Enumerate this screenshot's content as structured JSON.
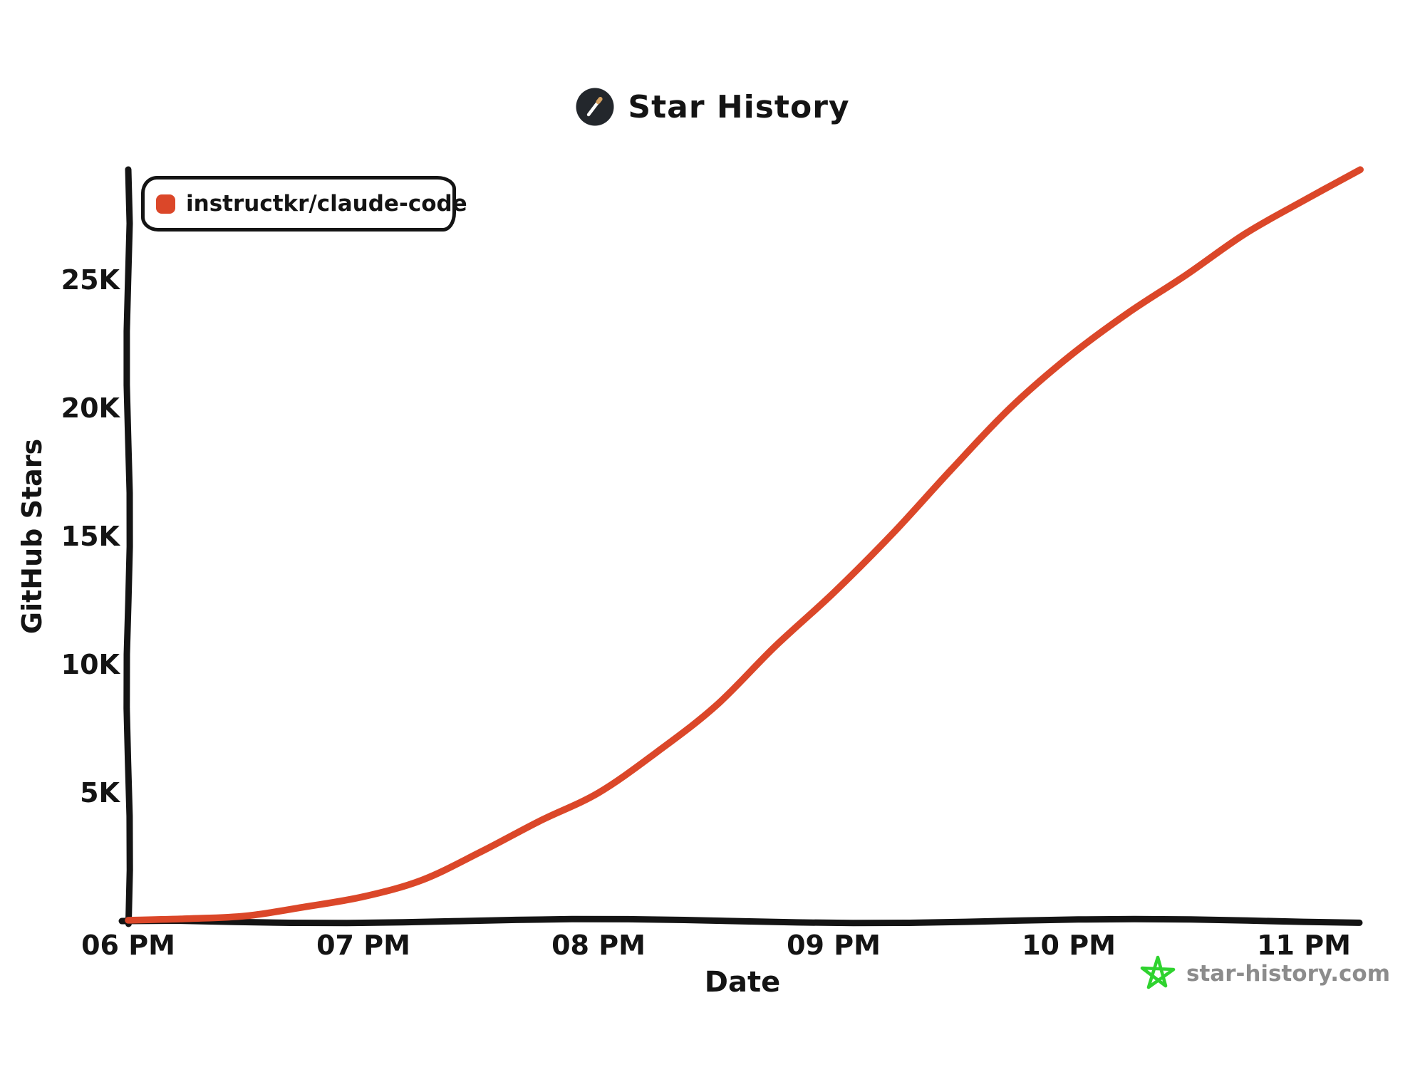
{
  "header": {
    "title": "Star History"
  },
  "legend": {
    "items": [
      {
        "label": "instructkr/claude-code",
        "color": "#DB4729"
      }
    ]
  },
  "watermark": {
    "text": "star-history.com",
    "icon": "green-star-icon",
    "icon_color": "#2FD32F",
    "text_color": "#8C8C8C"
  },
  "chart_data": {
    "type": "line",
    "title": "Star History",
    "xlabel": "Date",
    "ylabel": "GitHub Stars",
    "x_unit_hours_after": "06 PM",
    "x_ticks": [
      {
        "t": 0,
        "label": "06 PM"
      },
      {
        "t": 1,
        "label": "07 PM"
      },
      {
        "t": 2,
        "label": "08 PM"
      },
      {
        "t": 3,
        "label": "09 PM"
      },
      {
        "t": 4,
        "label": "10 PM"
      },
      {
        "t": 5,
        "label": "11 PM"
      }
    ],
    "y_ticks": [
      {
        "v": 5000,
        "label": "5K"
      },
      {
        "v": 10000,
        "label": "10K"
      },
      {
        "v": 15000,
        "label": "15K"
      },
      {
        "v": 20000,
        "label": "20K"
      },
      {
        "v": 25000,
        "label": "25K"
      }
    ],
    "xlim_hours": [
      0,
      5.24
    ],
    "ylim": [
      0,
      29600
    ],
    "grid": false,
    "legend_position": "top-left",
    "series": [
      {
        "name": "instructkr/claude-code",
        "color": "#DB4729",
        "points": [
          [
            0.0,
            30
          ],
          [
            0.25,
            90
          ],
          [
            0.5,
            200
          ],
          [
            0.75,
            550
          ],
          [
            1.0,
            950
          ],
          [
            1.25,
            1600
          ],
          [
            1.5,
            2700
          ],
          [
            1.75,
            3900
          ],
          [
            2.0,
            5000
          ],
          [
            2.25,
            6600
          ],
          [
            2.5,
            8400
          ],
          [
            2.75,
            10700
          ],
          [
            3.0,
            12800
          ],
          [
            3.25,
            15100
          ],
          [
            3.5,
            17600
          ],
          [
            3.75,
            20000
          ],
          [
            4.0,
            22000
          ],
          [
            4.25,
            23700
          ],
          [
            4.5,
            25200
          ],
          [
            4.75,
            26800
          ],
          [
            5.0,
            28100
          ],
          [
            5.24,
            29300
          ]
        ]
      }
    ]
  }
}
